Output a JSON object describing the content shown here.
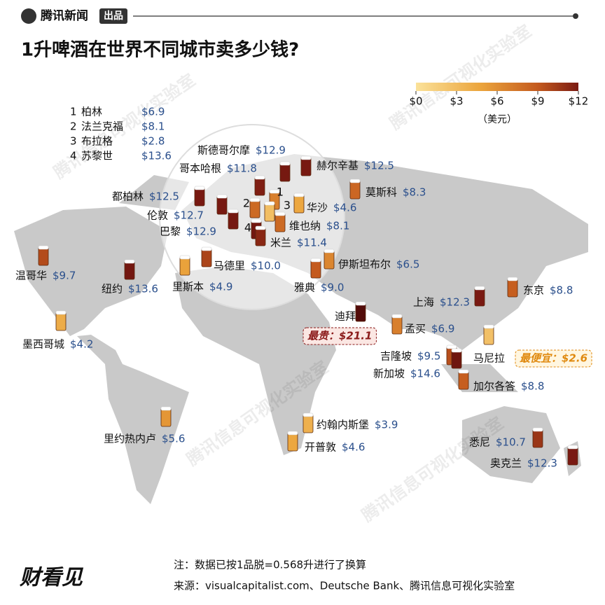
{
  "header": {
    "brand": "腾讯新闻",
    "badge": "出品",
    "title": "1升啤酒在世界不同城市卖多少钱?"
  },
  "legend": {
    "ticks": [
      {
        "value": 0,
        "label": "$0"
      },
      {
        "value": 3,
        "label": "$3"
      },
      {
        "value": 6,
        "label": "$6"
      },
      {
        "value": 9,
        "label": "$9"
      },
      {
        "value": 12,
        "label": "$12"
      }
    ],
    "unit": "（美元）"
  },
  "watermark": "腾讯信息可视化实验室",
  "numbered": [
    {
      "number": "1",
      "name": "柏林",
      "price": 6.9,
      "price_label": "$6.9"
    },
    {
      "number": "2",
      "name": "法兰克福",
      "price": 8.1,
      "price_label": "$8.1"
    },
    {
      "number": "3",
      "name": "布拉格",
      "price": 2.8,
      "price_label": "$2.8"
    },
    {
      "number": "4",
      "name": "苏黎世",
      "price": 13.6,
      "price_label": "$13.6"
    }
  ],
  "cities": [
    {
      "name": "斯德哥尔摩",
      "price": 12.9,
      "price_label": "$12.9"
    },
    {
      "name": "哥本哈根",
      "price": 11.8,
      "price_label": "$11.8"
    },
    {
      "name": "赫尔辛基",
      "price": 12.5,
      "price_label": "$12.5"
    },
    {
      "name": "莫斯科",
      "price": 8.3,
      "price_label": "$8.3"
    },
    {
      "name": "都柏林",
      "price": 12.5,
      "price_label": "$12.5"
    },
    {
      "name": "伦敦",
      "price": 12.7,
      "price_label": "$12.7"
    },
    {
      "name": "巴黎",
      "price": 12.9,
      "price_label": "$12.9"
    },
    {
      "name": "华沙",
      "price": 4.6,
      "price_label": "$4.6"
    },
    {
      "name": "维也纳",
      "price": 8.1,
      "price_label": "$8.1"
    },
    {
      "name": "米兰",
      "price": 11.4,
      "price_label": "$11.4"
    },
    {
      "name": "马德里",
      "price": 10.0,
      "price_label": "$10.0"
    },
    {
      "name": "里斯本",
      "price": 4.9,
      "price_label": "$4.9"
    },
    {
      "name": "伊斯坦布尔",
      "price": 6.5,
      "price_label": "$6.5"
    },
    {
      "name": "雅典",
      "price": 9.0,
      "price_label": "$9.0"
    },
    {
      "name": "温哥华",
      "price": 9.7,
      "price_label": "$9.7"
    },
    {
      "name": "纽约",
      "price": 13.6,
      "price_label": "$13.6"
    },
    {
      "name": "墨西哥城",
      "price": 4.2,
      "price_label": "$4.2"
    },
    {
      "name": "迪拜",
      "price": 21.1,
      "callout": "最贵：$21.1"
    },
    {
      "name": "孟买",
      "price": 6.9,
      "price_label": "$6.9"
    },
    {
      "name": "上海",
      "price": 12.3,
      "price_label": "$12.3"
    },
    {
      "name": "东京",
      "price": 8.8,
      "price_label": "$8.8"
    },
    {
      "name": "马尼拉",
      "price": 2.6,
      "callout": "最便宜：$2.6"
    },
    {
      "name": "吉隆坡",
      "price": 9.5,
      "price_label": "$9.5"
    },
    {
      "name": "新加坡",
      "price": 14.6,
      "price_label": "$14.6"
    },
    {
      "name": "加尔各答",
      "price": 8.8,
      "price_label": "$8.8"
    },
    {
      "name": "里约热内卢",
      "price": 5.6,
      "price_label": "$5.6"
    },
    {
      "name": "约翰内斯堡",
      "price": 3.9,
      "price_label": "$3.9"
    },
    {
      "name": "开普敦",
      "price": 4.6,
      "price_label": "$4.6"
    },
    {
      "name": "悉尼",
      "price": 10.7,
      "price_label": "$10.7"
    },
    {
      "name": "奥克兰",
      "price": 12.3,
      "price_label": "$12.3"
    }
  ],
  "footer": {
    "logo": "财看见",
    "note": "注：数据已按1品脱=0.568升进行了换算",
    "source": "来源：visualcapitalist.com、Deutsche Bank、腾讯信息可视化实验室"
  }
}
